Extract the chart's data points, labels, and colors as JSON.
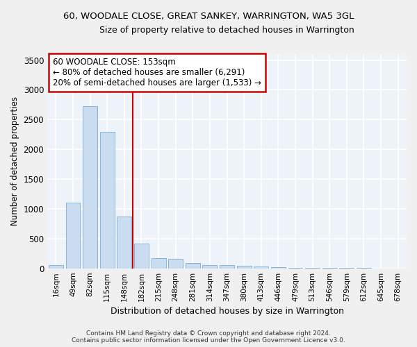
{
  "title": "60, WOODALE CLOSE, GREAT SANKEY, WARRINGTON, WA5 3GL",
  "subtitle": "Size of property relative to detached houses in Warrington",
  "xlabel": "Distribution of detached houses by size in Warrington",
  "ylabel": "Number of detached properties",
  "bar_color": "#c9dcf0",
  "bar_edge_color": "#7badd4",
  "background_color": "#eef2f9",
  "grid_color": "#ffffff",
  "categories": [
    "16sqm",
    "49sqm",
    "82sqm",
    "115sqm",
    "148sqm",
    "182sqm",
    "215sqm",
    "248sqm",
    "281sqm",
    "314sqm",
    "347sqm",
    "380sqm",
    "413sqm",
    "446sqm",
    "479sqm",
    "513sqm",
    "546sqm",
    "579sqm",
    "612sqm",
    "645sqm",
    "678sqm"
  ],
  "values": [
    60,
    1100,
    2730,
    2290,
    875,
    420,
    170,
    160,
    90,
    60,
    50,
    40,
    30,
    18,
    12,
    10,
    5,
    4,
    4,
    2,
    2
  ],
  "ylim": [
    0,
    3600
  ],
  "yticks": [
    0,
    500,
    1000,
    1500,
    2000,
    2500,
    3000,
    3500
  ],
  "vline_x": 4.5,
  "vline_color": "#cc0000",
  "annotation_line1": "60 WOODALE CLOSE: 153sqm",
  "annotation_line2": "← 80% of detached houses are smaller (6,291)",
  "annotation_line3": "20% of semi-detached houses are larger (1,533) →",
  "annotation_box_color": "#ffffff",
  "annotation_box_edge_color": "#cc0000",
  "footer_line1": "Contains HM Land Registry data © Crown copyright and database right 2024.",
  "footer_line2": "Contains public sector information licensed under the Open Government Licence v3.0."
}
